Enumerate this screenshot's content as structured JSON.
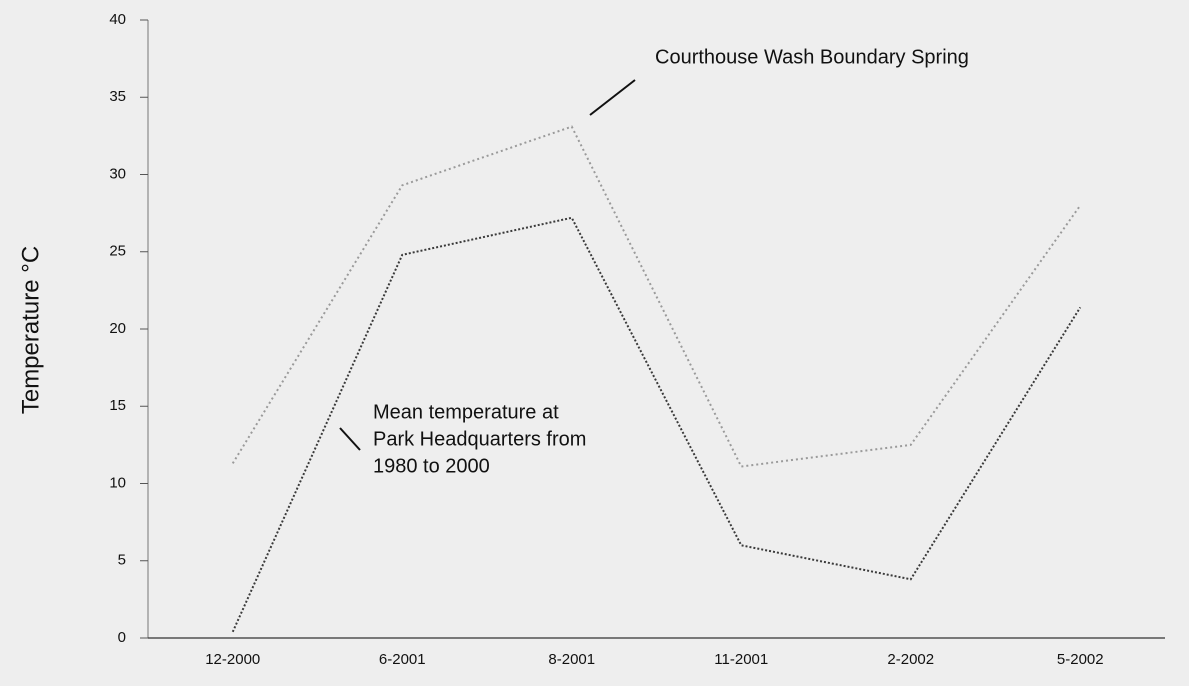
{
  "chart_data": {
    "type": "line",
    "y_label": "Temperature °C",
    "categories": [
      "12-2000",
      "6-2001",
      "8-2001",
      "11-2001",
      "2-2002",
      "5-2002"
    ],
    "series": [
      {
        "color": "#9a9a9a",
        "dash": "2,3",
        "values": [
          11.3,
          29.3,
          33.1,
          11.1,
          12.5,
          28.0
        ]
      },
      {
        "color": "#3a3a3a",
        "dash": "2,2",
        "values": [
          0.4,
          24.8,
          27.2,
          6.0,
          3.8,
          21.4
        ]
      }
    ],
    "annotations": [
      {
        "lines": [
          "Courthouse Wash Boundary Spring"
        ]
      },
      {
        "lines": [
          "Mean temperature at",
          "Park Headquarters from",
          "1980 to 2000"
        ]
      }
    ],
    "ylim": [
      0,
      40
    ],
    "yticks": [
      0,
      5,
      10,
      15,
      20,
      25,
      30,
      35,
      40
    ],
    "grid": false
  }
}
